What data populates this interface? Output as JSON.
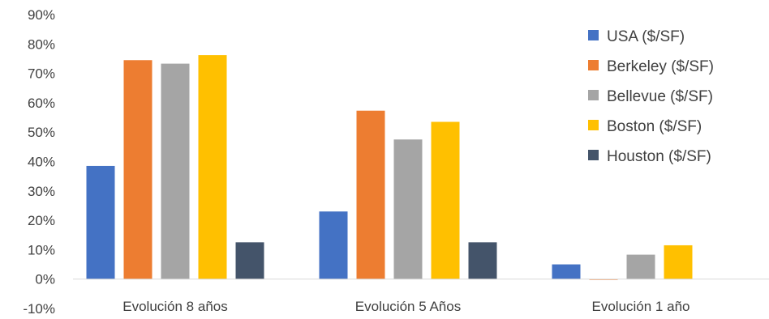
{
  "chart_data": {
    "type": "bar",
    "categories": [
      "Evolución 8 años",
      "Evolución 5 Años",
      "Evolución 1 año"
    ],
    "series": [
      {
        "name": "USA ($/SF)",
        "color": "#4472c4",
        "values": [
          0.385,
          0.23,
          0.05
        ]
      },
      {
        "name": "Berkeley ($/SF)",
        "color": "#ed7d31",
        "values": [
          0.745,
          0.573,
          -0.002
        ]
      },
      {
        "name": "Bellevue ($/SF)",
        "color": "#a5a5a5",
        "values": [
          0.733,
          0.475,
          0.083
        ]
      },
      {
        "name": "Boston ($/SF)",
        "color": "#ffc000",
        "values": [
          0.762,
          0.535,
          0.115
        ]
      },
      {
        "name": "Houston ($/SF)",
        "color": "#44546a",
        "values": [
          0.125,
          0.125,
          null
        ]
      }
    ],
    "ylim": [
      -0.1,
      0.9
    ],
    "yticks": [
      "-10%",
      "0%",
      "10%",
      "20%",
      "30%",
      "40%",
      "50%",
      "60%",
      "70%",
      "80%",
      "90%"
    ],
    "ytick_values": [
      -0.1,
      0,
      0.1,
      0.2,
      0.3,
      0.4,
      0.5,
      0.6,
      0.7,
      0.8,
      0.9
    ],
    "legend_position": "right",
    "grid": false
  }
}
